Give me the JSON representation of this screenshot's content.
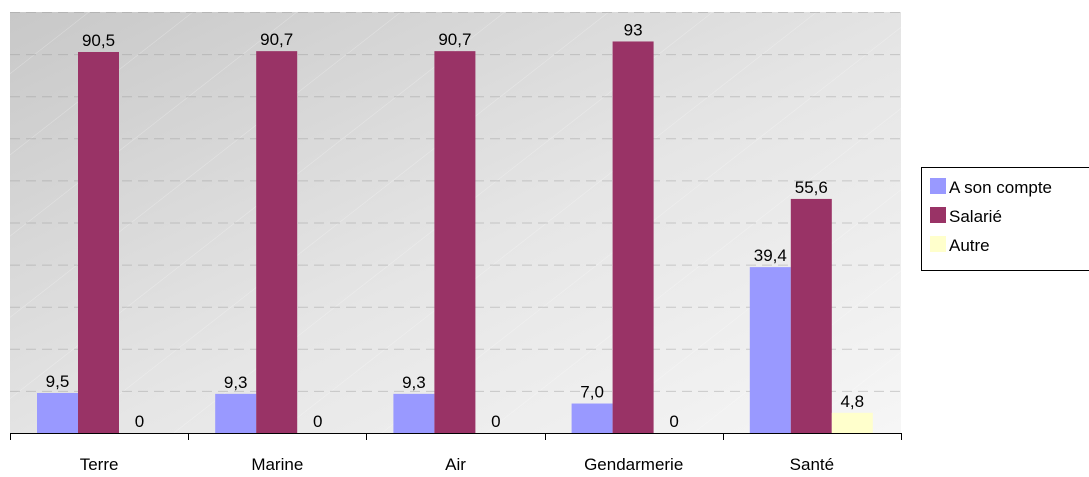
{
  "chart_data": {
    "type": "bar",
    "title": "",
    "xlabel": "",
    "ylabel": "",
    "ylim": [
      0,
      100
    ],
    "grid": true,
    "legend_position": "right",
    "categories": [
      "Terre",
      "Marine",
      "Air",
      "Gendarmerie",
      "Santé"
    ],
    "series": [
      {
        "name": "A son compte",
        "color": "#9999ff",
        "values": [
          9.5,
          9.3,
          9.3,
          7.0,
          39.4
        ],
        "labels": [
          "9,5",
          "9,3",
          "9,3",
          "7,0",
          "39,4"
        ]
      },
      {
        "name": "Salarié",
        "color": "#993366",
        "values": [
          90.5,
          90.7,
          90.7,
          93,
          55.6
        ],
        "labels": [
          "90,5",
          "90,7",
          "90,7",
          "93",
          "55,6"
        ]
      },
      {
        "name": "Autre",
        "color": "#ffffcc",
        "values": [
          0,
          0,
          0,
          0,
          4.8
        ],
        "labels": [
          "0",
          "0",
          "0",
          "0",
          "4,8"
        ]
      }
    ]
  }
}
